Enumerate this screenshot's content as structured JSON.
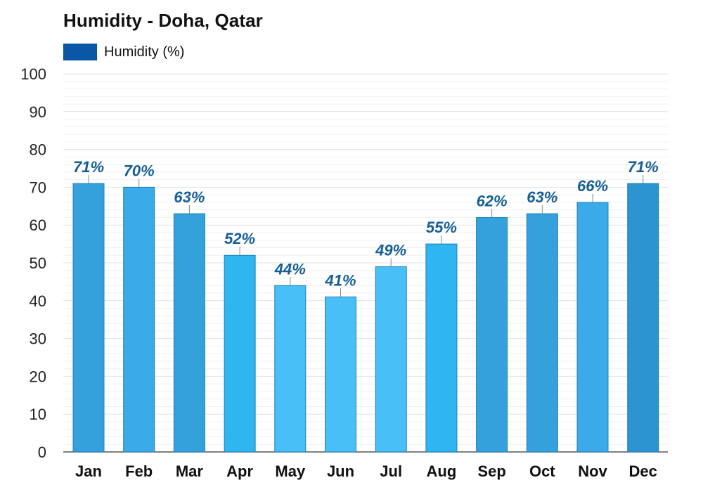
{
  "chart_data": {
    "type": "bar",
    "title": "Humidity - Doha, Qatar",
    "categories": [
      "Jan",
      "Feb",
      "Mar",
      "Apr",
      "May",
      "Jun",
      "Jul",
      "Aug",
      "Sep",
      "Oct",
      "Nov",
      "Dec"
    ],
    "series": [
      {
        "name": "Humidity (%)",
        "values": [
          71,
          70,
          63,
          52,
          44,
          41,
          49,
          55,
          62,
          63,
          66,
          71
        ]
      }
    ],
    "data_labels": [
      "71%",
      "70%",
      "63%",
      "52%",
      "44%",
      "41%",
      "49%",
      "55%",
      "62%",
      "63%",
      "66%",
      "71%"
    ],
    "yticks": [
      "0",
      "10",
      "20",
      "30",
      "40",
      "50",
      "60",
      "70",
      "80",
      "90",
      "100"
    ],
    "ylim": [
      0,
      100
    ],
    "grid": true,
    "legend_position": "top-left",
    "colors": {
      "legend_swatch": "#0957a5",
      "bars": [
        "#34a0dc",
        "#3aaae8",
        "#34a0dc",
        "#2fb6f0",
        "#48bff7",
        "#48bff7",
        "#48bff7",
        "#2fb6f0",
        "#34a0dc",
        "#34a0dc",
        "#3aaae8",
        "#2d94d2"
      ],
      "data_label": "#155f96",
      "grid": "#e2e2e2"
    }
  }
}
